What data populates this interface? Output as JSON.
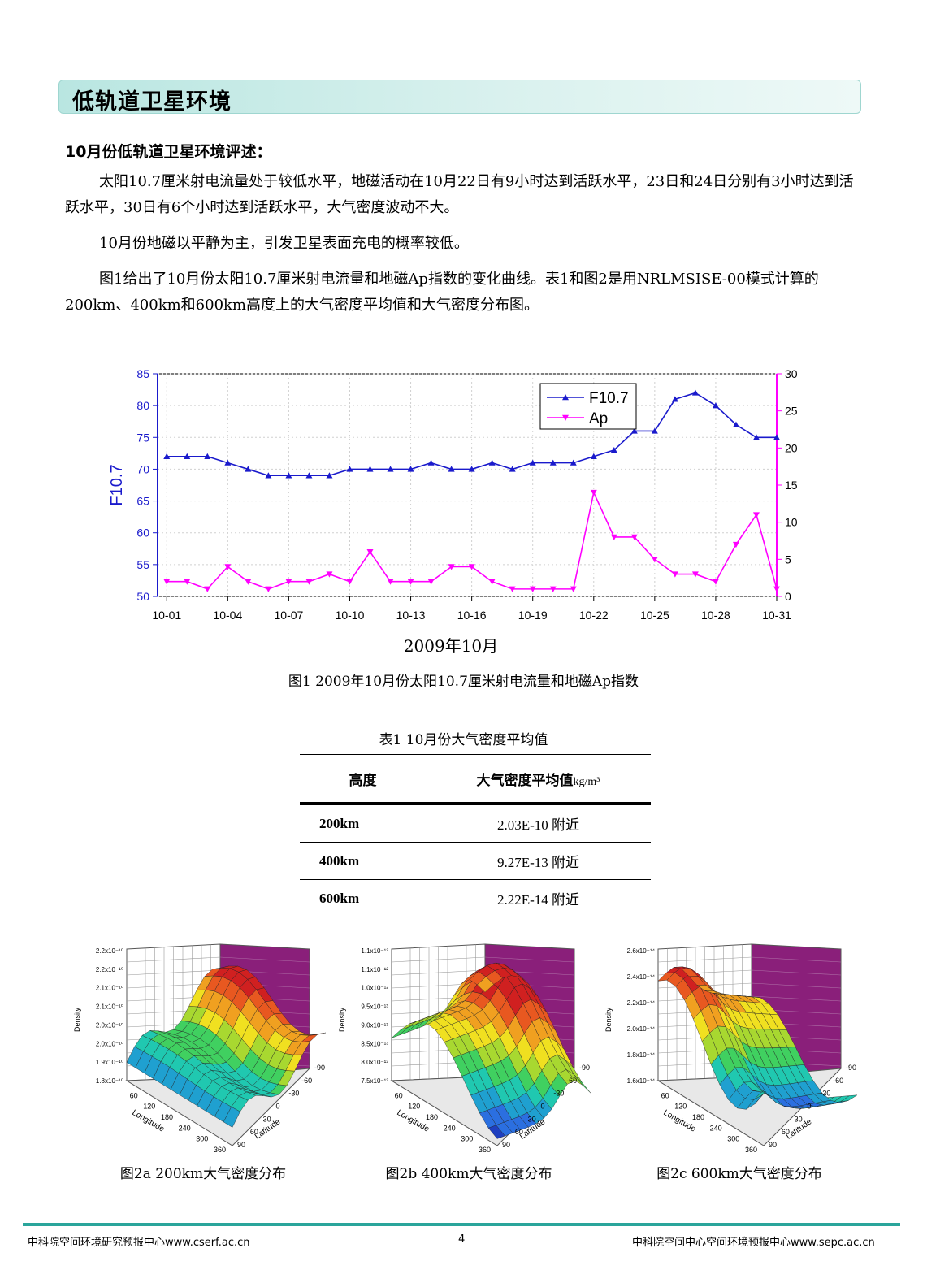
{
  "section_title": "低轨道卫星环境",
  "subheading": "10月份低轨道卫星环境评述：",
  "paragraphs": [
    "太阳10.7厘米射电流量处于较低水平，地磁活动在10月22日有9小时达到活跃水平，23日和24日分别有3小时达到活跃水平，30日有6个小时达到活跃水平，大气密度波动不大。",
    "10月份地磁以平静为主，引发卫星表面充电的概率较低。",
    "图1给出了10月份太阳10.7厘米射电流量和地磁Ap指数的变化曲线。表1和图2是用NRLMSISE-00模式计算的200km、400km和600km高度上的大气密度平均值和大气密度分布图。"
  ],
  "chart_data": {
    "type": "line",
    "xlabel": "2009年10月",
    "ylabel": "F10.7",
    "y2label": "Ap",
    "ylim": [
      50,
      85
    ],
    "y2lim": [
      0,
      30
    ],
    "yticks": [
      "50",
      "55",
      "60",
      "65",
      "70",
      "75",
      "80",
      "85"
    ],
    "y2ticks": [
      "0",
      "5",
      "10",
      "15",
      "20",
      "25",
      "30"
    ],
    "x_tick_labels": [
      "10-01",
      "10-04",
      "10-07",
      "10-10",
      "10-13",
      "10-16",
      "10-19",
      "10-22",
      "10-25",
      "10-28",
      "10-31"
    ],
    "x_tick_days": [
      1,
      4,
      7,
      10,
      13,
      16,
      19,
      22,
      25,
      28,
      31
    ],
    "x_days": [
      1,
      2,
      3,
      4,
      5,
      6,
      7,
      8,
      9,
      10,
      11,
      12,
      13,
      14,
      15,
      16,
      17,
      18,
      19,
      20,
      21,
      22,
      23,
      24,
      25,
      26,
      27,
      28,
      29,
      30,
      31
    ],
    "legend_position": "top-right",
    "series": [
      {
        "name": "F10.7",
        "axis": "left",
        "color": "#1a1acc",
        "marker": "triangle-up",
        "values": [
          72,
          72,
          72,
          71,
          70,
          69,
          69,
          69,
          69,
          70,
          70,
          70,
          70,
          71,
          70,
          70,
          71,
          70,
          71,
          71,
          71,
          72,
          73,
          76,
          76,
          81,
          82,
          80,
          77,
          75,
          75
        ]
      },
      {
        "name": "Ap",
        "axis": "right",
        "color": "#ff00ff",
        "marker": "triangle-down",
        "values": [
          2,
          2,
          1,
          4,
          2,
          1,
          2,
          2,
          3,
          2,
          6,
          2,
          2,
          2,
          4,
          4,
          2,
          1,
          1,
          1,
          1,
          14,
          8,
          8,
          5,
          3,
          3,
          2,
          7,
          11,
          1
        ]
      }
    ]
  },
  "figure1_caption": "图1  2009年10月份太阳10.7厘米射电流量和地磁Ap指数",
  "table": {
    "title": "表1  10月份大气密度平均值",
    "headers": [
      "高度",
      "大气密度平均值",
      "kg/m³"
    ],
    "rows": [
      {
        "altitude": "200km",
        "value": "2.03E-10 附近"
      },
      {
        "altitude": "400km",
        "value": "9.27E-13  附近"
      },
      {
        "altitude": "600km",
        "value": "2.22E-14  附近"
      }
    ]
  },
  "surface_plots": [
    {
      "caption": "图2a 200km大气密度分布",
      "z_ticks": [
        "1.8x10⁻¹⁰",
        "1.9x10⁻¹⁰",
        "2.0x10⁻¹⁰",
        "2.0x10⁻¹⁰",
        "2.1x10⁻¹⁰",
        "2.1x10⁻¹⁰",
        "2.2x10⁻¹⁰",
        "2.2x10⁻¹⁰"
      ]
    },
    {
      "caption": "图2b  400km大气密度分布",
      "z_ticks": [
        "7.5x10⁻¹³",
        "8.0x10⁻¹³",
        "8.5x10⁻¹³",
        "9.0x10⁻¹³",
        "9.5x10⁻¹³",
        "1.0x10⁻¹²",
        "1.1x10⁻¹²",
        "1.1x10⁻¹²"
      ]
    },
    {
      "caption": "图2c  600km大气密度分布",
      "z_ticks": [
        "1.6x10⁻¹⁴",
        "1.8x10⁻¹⁴",
        "2.0x10⁻¹⁴",
        "2.2x10⁻¹⁴",
        "2.4x10⁻¹⁴",
        "2.6x10⁻¹⁴"
      ]
    }
  ],
  "surface_axes": {
    "z_label": "Density",
    "x_label": "Longitude",
    "y_label": "Latitude",
    "longitude_ticks": [
      "60",
      "120",
      "180",
      "240",
      "300",
      "360"
    ],
    "latitude_ticks": [
      "90",
      "60",
      "30",
      "0",
      "-30",
      "-60",
      "-90"
    ]
  },
  "footer": {
    "left": "中科院空间环境研究预报中心www.cserf.ac.cn",
    "page": "4",
    "right": "中科院空间中心空间环境预报中心www.sepc.ac.cn"
  }
}
